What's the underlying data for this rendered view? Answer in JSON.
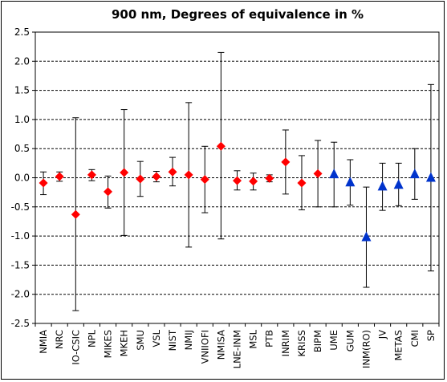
{
  "chart_data": {
    "type": "scatter",
    "title": "900 nm, Degrees of equivalence in %",
    "xlabel": "",
    "ylabel": "",
    "ylim": [
      -2.5,
      2.5
    ],
    "yticks": [
      2.5,
      2.0,
      1.5,
      1.0,
      0.5,
      0.0,
      -0.5,
      -1.0,
      -1.5,
      -2.0,
      -2.5
    ],
    "ytick_labels": [
      "2.5",
      "2.0",
      "1.5",
      "1.0",
      "0.5",
      "0.0",
      "-0.5",
      "-1.0",
      "-1.5",
      "-2.0",
      "-2.5"
    ],
    "grid": "horizontal dashed",
    "marker_colors": {
      "diamond": "#ff0000",
      "triangle": "#0033cc"
    },
    "categories": [
      "NMIA",
      "NRC",
      "IO-CSIC",
      "NPL",
      "MIKES",
      "MKEH",
      "SMU",
      "VSL",
      "NIST",
      "NMIJ",
      "VNIIOFI",
      "NMISA",
      "LNE-INM",
      "MSL",
      "PTB",
      "INRIM",
      "KRISS",
      "BIPM",
      "UME",
      "GUM",
      "INM(RO)",
      "JV",
      "METAS",
      "CMI",
      "SP"
    ],
    "points": [
      {
        "label": "NMIA",
        "value": -0.09,
        "lower": -0.29,
        "upper": 0.1,
        "marker": "diamond"
      },
      {
        "label": "NRC",
        "value": 0.02,
        "lower": -0.06,
        "upper": 0.1,
        "marker": "diamond"
      },
      {
        "label": "IO-CSIC",
        "value": -0.63,
        "lower": -2.28,
        "upper": 1.03,
        "marker": "diamond"
      },
      {
        "label": "NPL",
        "value": 0.05,
        "lower": -0.05,
        "upper": 0.14,
        "marker": "diamond"
      },
      {
        "label": "MIKES",
        "value": -0.24,
        "lower": -0.52,
        "upper": 0.03,
        "marker": "diamond"
      },
      {
        "label": "MKEH",
        "value": 0.09,
        "lower": -0.99,
        "upper": 1.17,
        "marker": "diamond"
      },
      {
        "label": "SMU",
        "value": -0.02,
        "lower": -0.32,
        "upper": 0.28,
        "marker": "diamond"
      },
      {
        "label": "VSL",
        "value": 0.02,
        "lower": -0.07,
        "upper": 0.11,
        "marker": "diamond"
      },
      {
        "label": "NIST",
        "value": 0.1,
        "lower": -0.14,
        "upper": 0.35,
        "marker": "diamond"
      },
      {
        "label": "NMIJ",
        "value": 0.05,
        "lower": -1.19,
        "upper": 1.29,
        "marker": "diamond"
      },
      {
        "label": "VNIIOFI",
        "value": -0.03,
        "lower": -0.6,
        "upper": 0.54,
        "marker": "diamond"
      },
      {
        "label": "NMISA",
        "value": 0.54,
        "lower": -1.05,
        "upper": 2.15,
        "marker": "diamond"
      },
      {
        "label": "LNE-INM",
        "value": -0.05,
        "lower": -0.21,
        "upper": 0.12,
        "marker": "diamond"
      },
      {
        "label": "MSL",
        "value": -0.06,
        "lower": -0.21,
        "upper": 0.08,
        "marker": "diamond"
      },
      {
        "label": "PTB",
        "value": -0.01,
        "lower": -0.07,
        "upper": 0.05,
        "marker": "diamond"
      },
      {
        "label": "INRIM",
        "value": 0.27,
        "lower": -0.28,
        "upper": 0.82,
        "marker": "diamond"
      },
      {
        "label": "KRISS",
        "value": -0.09,
        "lower": -0.55,
        "upper": 0.38,
        "marker": "diamond"
      },
      {
        "label": "BIPM",
        "value": 0.07,
        "lower": -0.5,
        "upper": 0.64,
        "marker": "diamond"
      },
      {
        "label": "UME",
        "value": 0.06,
        "lower": -0.5,
        "upper": 0.61,
        "marker": "triangle"
      },
      {
        "label": "GUM",
        "value": -0.08,
        "lower": -0.47,
        "upper": 0.31,
        "marker": "triangle"
      },
      {
        "label": "INM(RO)",
        "value": -1.02,
        "lower": -1.88,
        "upper": -0.16,
        "marker": "triangle"
      },
      {
        "label": "JV",
        "value": -0.15,
        "lower": -0.56,
        "upper": 0.25,
        "marker": "triangle"
      },
      {
        "label": "METAS",
        "value": -0.12,
        "lower": -0.48,
        "upper": 0.25,
        "marker": "triangle"
      },
      {
        "label": "CMI",
        "value": 0.06,
        "lower": -0.37,
        "upper": 0.5,
        "marker": "triangle"
      },
      {
        "label": "SP",
        "value": 0.0,
        "lower": -1.6,
        "upper": 1.6,
        "marker": "triangle"
      }
    ]
  }
}
